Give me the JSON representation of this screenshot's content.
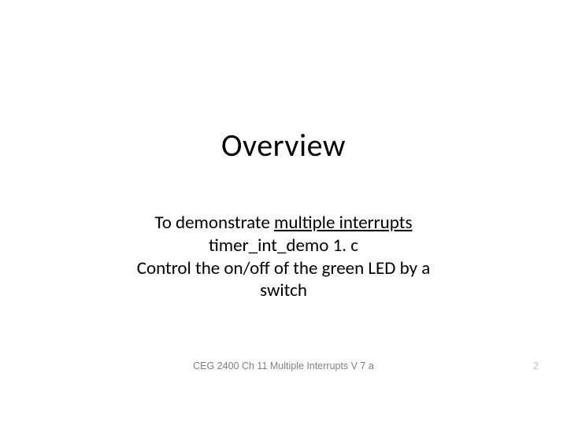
{
  "slide": {
    "title": "Overview",
    "body_line1_prefix": "To demonstrate ",
    "body_line1_underlined": "multiple interrupts",
    "body_line2": "timer_int_demo 1. c",
    "body_line3": "Control the on/off of the green LED by a",
    "body_line4": "switch",
    "footer_center": "CEG 2400 Ch 11 Multiple Interrupts V 7 a",
    "page_number": "2"
  },
  "style": {
    "background_color": "#ffffff",
    "title_fontsize": 40,
    "body_fontsize": 23,
    "footer_fontsize": 12.5,
    "title_color": "#000000",
    "body_color": "#000000",
    "footer_color": "#7f7f7f",
    "page_number_color": "#bfbfbf",
    "font_family": "Calibri"
  }
}
